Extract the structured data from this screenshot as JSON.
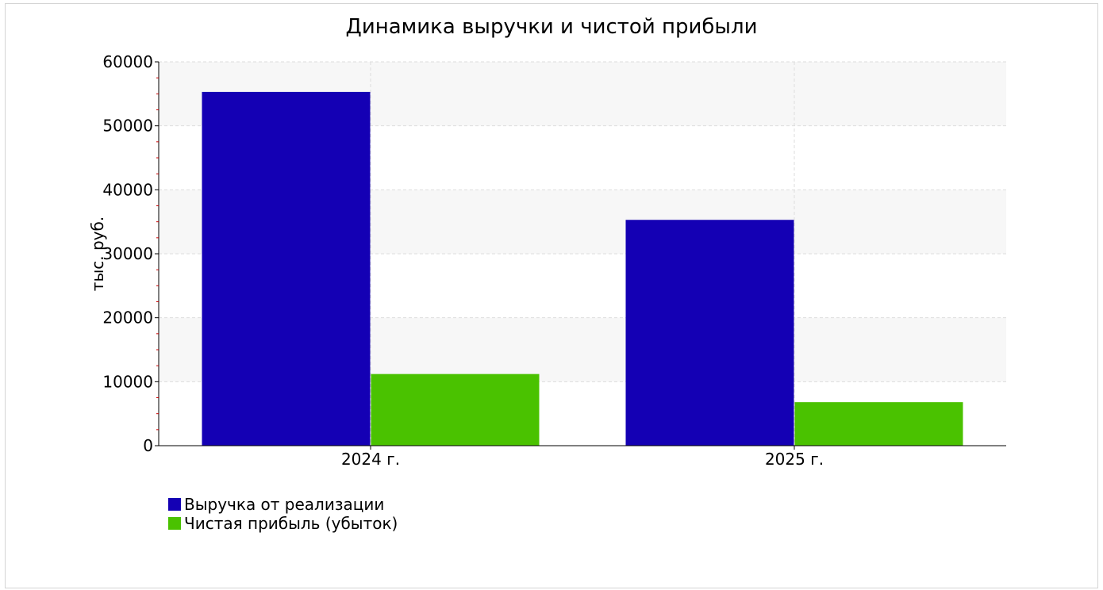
{
  "chart_data": {
    "type": "bar",
    "title": "Динамика выручки и чистой прибыли",
    "ylabel": "тыс. руб.",
    "xlabel": "",
    "categories": [
      "2024 г.",
      "2025 г."
    ],
    "series": [
      {
        "name": "Выручка от реализации",
        "color": "#1400b4",
        "values": [
          55300,
          35300
        ]
      },
      {
        "name": "Чистая прибыль (убыток)",
        "color": "#4ac200",
        "values": [
          11200,
          6800
        ]
      }
    ],
    "ylim": [
      0,
      60000
    ],
    "yticks": [
      0,
      10000,
      20000,
      30000,
      40000,
      50000,
      60000
    ],
    "ytick_labels": [
      "0",
      "10000",
      "20000",
      "30000",
      "40000",
      "50000",
      "60000"
    ],
    "grid": true,
    "banded_background": true,
    "legend_position": "bottom-left"
  }
}
